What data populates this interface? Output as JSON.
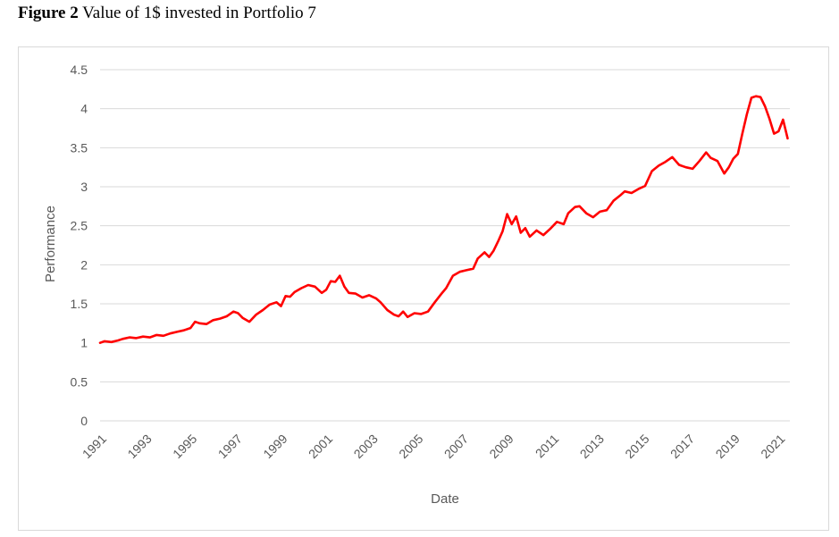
{
  "figure": {
    "label": "Figure 2",
    "title": "Value of 1$ invested in Portfolio 7"
  },
  "chart_data": {
    "type": "line",
    "xlabel": "Date",
    "ylabel": "Performance",
    "xlim": [
      1991,
      2021.5
    ],
    "ylim": [
      0,
      4.5
    ],
    "y_ticks": [
      "0",
      "0.5",
      "1",
      "1.5",
      "2",
      "2.5",
      "3",
      "3.5",
      "4",
      "4.5"
    ],
    "x_ticks": [
      "1991",
      "1993",
      "1995",
      "1997",
      "1999",
      "2001",
      "2003",
      "2005",
      "2007",
      "2009",
      "2011",
      "2013",
      "2015",
      "2017",
      "2019",
      "2021"
    ],
    "grid": true,
    "legend": "none",
    "series": [
      {
        "color": "#ff0000",
        "x": [
          1991.0,
          1991.2,
          1991.5,
          1991.8,
          1992.0,
          1992.3,
          1992.6,
          1992.9,
          1993.2,
          1993.5,
          1993.8,
          1994.1,
          1994.4,
          1994.7,
          1995.0,
          1995.2,
          1995.4,
          1995.7,
          1996.0,
          1996.3,
          1996.6,
          1996.9,
          1997.1,
          1997.3,
          1997.6,
          1997.9,
          1998.2,
          1998.5,
          1998.8,
          1999.0,
          1999.2,
          1999.4,
          1999.6,
          1999.9,
          2000.2,
          2000.5,
          2000.8,
          2001.0,
          2001.2,
          2001.4,
          2001.6,
          2001.8,
          2002.0,
          2002.3,
          2002.6,
          2002.9,
          2003.2,
          2003.4,
          2003.7,
          2004.0,
          2004.2,
          2004.4,
          2004.6,
          2004.9,
          2005.2,
          2005.5,
          2005.8,
          2006.1,
          2006.3,
          2006.6,
          2006.9,
          2007.2,
          2007.5,
          2007.7,
          2008.0,
          2008.2,
          2008.4,
          2008.6,
          2008.8,
          2009.0,
          2009.2,
          2009.4,
          2009.6,
          2009.8,
          2010.0,
          2010.3,
          2010.6,
          2010.9,
          2011.2,
          2011.5,
          2011.7,
          2012.0,
          2012.2,
          2012.5,
          2012.8,
          2013.1,
          2013.4,
          2013.7,
          2014.0,
          2014.2,
          2014.5,
          2014.8,
          2015.1,
          2015.4,
          2015.7,
          2016.0,
          2016.3,
          2016.6,
          2016.9,
          2017.2,
          2017.5,
          2017.8,
          2018.0,
          2018.3,
          2018.6,
          2018.8,
          2019.0,
          2019.2,
          2019.4,
          2019.6,
          2019.8,
          2020.0,
          2020.2,
          2020.4,
          2020.6,
          2020.8,
          2021.0,
          2021.2,
          2021.4
        ],
        "y": [
          1.0,
          1.02,
          1.01,
          1.03,
          1.05,
          1.07,
          1.06,
          1.08,
          1.07,
          1.1,
          1.09,
          1.12,
          1.14,
          1.16,
          1.19,
          1.27,
          1.25,
          1.24,
          1.29,
          1.31,
          1.34,
          1.4,
          1.38,
          1.32,
          1.27,
          1.36,
          1.42,
          1.49,
          1.52,
          1.47,
          1.6,
          1.59,
          1.65,
          1.7,
          1.74,
          1.72,
          1.64,
          1.68,
          1.79,
          1.78,
          1.86,
          1.72,
          1.64,
          1.63,
          1.58,
          1.61,
          1.57,
          1.52,
          1.42,
          1.36,
          1.34,
          1.4,
          1.33,
          1.38,
          1.37,
          1.4,
          1.52,
          1.63,
          1.7,
          1.86,
          1.91,
          1.93,
          1.95,
          2.08,
          2.16,
          2.1,
          2.18,
          2.3,
          2.43,
          2.65,
          2.52,
          2.62,
          2.41,
          2.47,
          2.36,
          2.44,
          2.38,
          2.46,
          2.55,
          2.52,
          2.66,
          2.74,
          2.75,
          2.66,
          2.61,
          2.68,
          2.7,
          2.82,
          2.89,
          2.94,
          2.92,
          2.97,
          3.01,
          3.2,
          3.27,
          3.32,
          3.38,
          3.28,
          3.25,
          3.23,
          3.33,
          3.44,
          3.37,
          3.33,
          3.17,
          3.25,
          3.36,
          3.42,
          3.68,
          3.93,
          4.14,
          4.16,
          4.15,
          4.03,
          3.87,
          3.68,
          3.71,
          3.86,
          3.62
        ]
      }
    ]
  }
}
